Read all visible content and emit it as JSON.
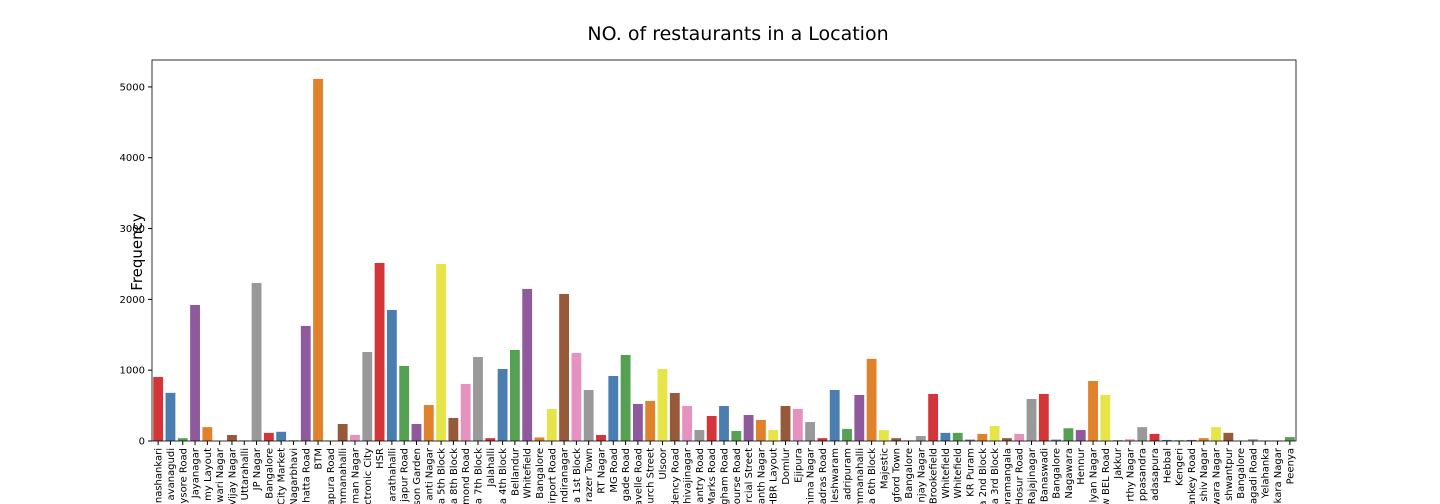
{
  "chart_data": {
    "type": "bar",
    "title": "NO. of restaurants in a Location",
    "y_label": "Frequency",
    "categories": [
      "nashankari",
      "avanagudi",
      "ysore Road",
      "Jayanagar",
      "my Layout",
      "wari Nagar",
      "Vijay Nagar",
      "Uttarahalli",
      "JP Nagar",
      "Bangalore",
      "City Market",
      "Nagarbhavi",
      "hatta Road",
      "BTM",
      "apura Road",
      "mmanahalli",
      "man Nagar",
      "ctronic City",
      "HSR",
      "arathahalli",
      "japur Road",
      "son Garden",
      "anti Nagar",
      "a 5th Block",
      "a 8th Block",
      "mond Road",
      "a 7th Block",
      "Jalahalli",
      "a 4th Block",
      "Bellandur",
      "Whitefield",
      "Bangalore",
      "irport Road",
      "ndiranagar",
      "a 1st Block",
      "razer Town",
      "RT Nagar",
      "MG Road",
      "gade Road",
      "avelle Road",
      "urch Street",
      "Ulsoor",
      "dency Road",
      "hivajinagar",
      "antry Road",
      "Marks Road",
      "gham Road",
      "ourse Road",
      "rcial Street",
      "anth Nagar",
      "HBR Layout",
      "Domlur",
      "Ejipura",
      "hima Nagar",
      "adras Road",
      "leshwaram",
      "adripuram",
      "mmanahalli",
      "a 6th Block",
      "Majestic",
      "gford Town",
      "Bangalore",
      "njay Nagar",
      "Brookefield",
      "Whitefield",
      "Whitefield",
      "KR Puram",
      "a 2nd Block",
      "a 3rd Block",
      "oramangala",
      "Hosur Road",
      "Rajajinagar",
      "Banaswadi",
      "Bangalore",
      "Nagawara",
      "Hennur",
      "lyan Nagar",
      "w BEL Road",
      "Jakkur",
      "rthy Nagar",
      "ppasandra",
      "adasapura",
      "Hebbal",
      "Kengeri",
      "ankey Road",
      "shiv Nagar",
      "wara Nagar",
      "shwantpur",
      "Bangalore",
      "agadi Road",
      "Yelahanka",
      "kara Nagar",
      "Peenya"
    ],
    "values": [
      904,
      680,
      40,
      1921,
      196,
      5,
      85,
      10,
      2232,
      115,
      130,
      10,
      1624,
      5113,
      10,
      240,
      85,
      1257,
      2514,
      1850,
      1059,
      240,
      508,
      2500,
      325,
      805,
      1186,
      40,
      1017,
      1285,
      2147,
      50,
      452,
      2076,
      1243,
      720,
      85,
      918,
      1215,
      523,
      565,
      1017,
      678,
      494,
      155,
      353,
      494,
      141,
      367,
      297,
      155,
      494,
      452,
      268,
      40,
      720,
      170,
      650,
      1160,
      155,
      40,
      10,
      70,
      664,
      115,
      115,
      20,
      100,
      212,
      40,
      100,
      593,
      664,
      20,
      180,
      155,
      847,
      650,
      10,
      25,
      196,
      100,
      15,
      10,
      15,
      40,
      196,
      115,
      5,
      25,
      5,
      5,
      55
    ],
    "palette": [
      "#d33538",
      "#4a7eb0",
      "#56a053",
      "#8f5a9c",
      "#e0822c",
      "#e5e54a",
      "#96593a",
      "#e692c1",
      "#999999"
    ],
    "ylim": [
      0,
      5380
    ],
    "yticks": [
      0,
      1000,
      2000,
      3000,
      4000,
      5000
    ]
  }
}
